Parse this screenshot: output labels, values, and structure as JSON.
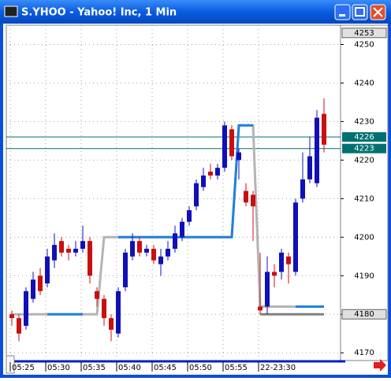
{
  "window": {
    "title": "S.YHOO - Yahoo! Inc, 1 Min"
  },
  "chart_data": {
    "type": "candlestick",
    "categories": [
      "05:25",
      null,
      null,
      null,
      null,
      "05:30",
      null,
      null,
      null,
      null,
      "05:35",
      null,
      null,
      null,
      null,
      "05:40",
      null,
      null,
      null,
      null,
      "05:45",
      null,
      null,
      null,
      null,
      "05:50",
      null,
      null,
      null,
      null,
      "05:55",
      null,
      null,
      null,
      null,
      "22-23:30",
      null,
      null,
      null,
      null,
      null,
      null,
      null,
      null,
      null
    ],
    "open": [
      4180,
      4179,
      4177,
      4184,
      4190,
      4188,
      4194,
      4199,
      4197,
      4196,
      4197,
      4199,
      4186,
      4184,
      4179,
      4175,
      4187,
      4195,
      4199,
      4196,
      4197,
      4193,
      4195,
      4197,
      4200,
      4204,
      4208,
      4213,
      4217,
      4216,
      4218,
      4228,
      4220,
      4212,
      4211,
      4182,
      4182,
      4191,
      4191,
      4195,
      4191,
      4210,
      4215,
      4214,
      4232
    ],
    "high": [
      4181,
      4180,
      4187,
      4191,
      4192,
      4197,
      4201,
      4200,
      4198,
      4199,
      4203,
      4200,
      4187,
      4185,
      4180,
      4187,
      4197,
      4201,
      4200,
      4198,
      4198,
      4197,
      4199,
      4203,
      4205,
      4208,
      4215,
      4218,
      4219,
      4219,
      4230,
      4229,
      4223,
      4214,
      4212,
      4196,
      4195,
      4193,
      4197,
      4196,
      4210,
      4222,
      4226,
      4233,
      4236
    ],
    "low": [
      4177,
      4173,
      4176,
      4183,
      4185,
      4187,
      4192,
      4195,
      4194,
      4195,
      4196,
      4188,
      4182,
      4177,
      4173,
      4174,
      4186,
      4194,
      4195,
      4195,
      4193,
      4190,
      4194,
      4196,
      4199,
      4203,
      4207,
      4212,
      4215,
      4215,
      4217,
      4220,
      4215,
      4208,
      4199,
      4180,
      4180,
      4187,
      4189,
      4188,
      4190,
      4209,
      4214,
      4213,
      4222
    ],
    "close": [
      4179,
      4175,
      4186,
      4189,
      4186,
      4195,
      4198,
      4196,
      4196,
      4197,
      4199,
      4190,
      4184,
      4179,
      4176,
      4186,
      4196,
      4199,
      4196,
      4197,
      4194,
      4195,
      4197,
      4201,
      4204,
      4207,
      4214,
      4216,
      4216,
      4218,
      4229,
      4221,
      4222,
      4209,
      4208,
      4181,
      4191,
      4190,
      4196,
      4193,
      4209,
      4215,
      4221,
      4231,
      4224
    ],
    "up_color": "#1010b8",
    "down_color": "#c81010",
    "series": [
      {
        "color": "#b4b4b4",
        "values": [
          4180,
          4180,
          4180,
          4180,
          4180,
          4180,
          4180,
          4180,
          4180,
          4180,
          4180,
          4180,
          4180,
          4200,
          4200,
          4200,
          4200,
          4200,
          4200,
          4200,
          4200,
          4200,
          4200,
          4200,
          4200,
          4200,
          4200,
          4200,
          4200,
          4200,
          4200,
          4200,
          4229,
          4229,
          4229,
          4182,
          4182,
          4182,
          4182,
          4182,
          4182,
          4182,
          4182,
          4182,
          4182
        ]
      },
      {
        "color": "#2080e0",
        "values": [
          null,
          null,
          null,
          null,
          null,
          4180,
          4180,
          4180,
          4180,
          4180,
          4180,
          null,
          null,
          null,
          null,
          4200,
          4200,
          4200,
          4200,
          4200,
          4200,
          4200,
          4200,
          4200,
          4200,
          4200,
          4200,
          4200,
          4200,
          4200,
          4200,
          4200,
          4229,
          4229,
          4229,
          null,
          null,
          null,
          null,
          null,
          4182,
          4182,
          4182,
          4182,
          4182
        ]
      },
      {
        "color": "#808080",
        "values": [
          null,
          null,
          null,
          null,
          null,
          null,
          null,
          null,
          null,
          null,
          null,
          null,
          null,
          null,
          null,
          null,
          null,
          null,
          null,
          null,
          null,
          null,
          null,
          null,
          null,
          null,
          null,
          null,
          null,
          null,
          null,
          null,
          null,
          null,
          null,
          4180,
          4180,
          4180,
          4180,
          4180,
          4180,
          4180,
          4180,
          4180,
          4180
        ]
      }
    ],
    "levels": [
      {
        "value": 4226,
        "color": "#007070"
      },
      {
        "value": 4223,
        "color": "#007070"
      }
    ],
    "boxed_labels": [
      4253,
      4180
    ],
    "ylim": [
      4168,
      4255
    ],
    "yticks": [
      4170,
      4180,
      4190,
      4200,
      4210,
      4220,
      4230,
      4240,
      4250
    ],
    "grid": true
  }
}
